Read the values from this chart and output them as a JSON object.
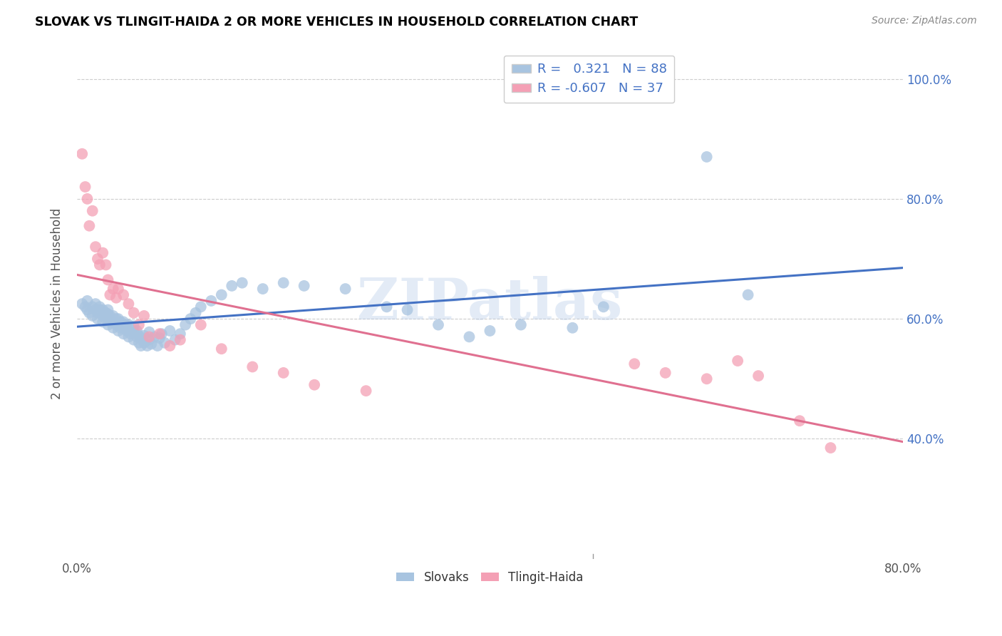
{
  "title": "SLOVAK VS TLINGIT-HAIDA 2 OR MORE VEHICLES IN HOUSEHOLD CORRELATION CHART",
  "source": "Source: ZipAtlas.com",
  "ylabel": "2 or more Vehicles in Household",
  "x_min": 0.0,
  "x_max": 0.8,
  "y_min": 0.2,
  "y_max": 1.05,
  "y_ticks": [
    0.4,
    0.6,
    0.8,
    1.0
  ],
  "y_tick_labels": [
    "40.0%",
    "60.0%",
    "80.0%",
    "100.0%"
  ],
  "slovak_color": "#a8c4e0",
  "tlingit_color": "#f4a0b5",
  "slovak_line_color": "#4472c4",
  "tlingit_line_color": "#e07090",
  "legend_slovak_label": "R =   0.321   N = 88",
  "legend_tlingit_label": "R = -0.607   N = 37",
  "legend_bottom_slovak": "Slovaks",
  "legend_bottom_tlingit": "Tlingit-Haida",
  "watermark": "ZIPatlas",
  "slovak_scatter_x": [
    0.005,
    0.008,
    0.01,
    0.01,
    0.012,
    0.015,
    0.015,
    0.018,
    0.018,
    0.02,
    0.02,
    0.022,
    0.022,
    0.025,
    0.025,
    0.025,
    0.028,
    0.028,
    0.03,
    0.03,
    0.03,
    0.03,
    0.032,
    0.032,
    0.035,
    0.035,
    0.035,
    0.038,
    0.038,
    0.04,
    0.04,
    0.04,
    0.042,
    0.042,
    0.045,
    0.045,
    0.045,
    0.048,
    0.048,
    0.05,
    0.05,
    0.05,
    0.052,
    0.055,
    0.055,
    0.055,
    0.058,
    0.058,
    0.06,
    0.06,
    0.062,
    0.062,
    0.065,
    0.065,
    0.068,
    0.07,
    0.07,
    0.072,
    0.075,
    0.078,
    0.08,
    0.082,
    0.085,
    0.09,
    0.095,
    0.1,
    0.105,
    0.11,
    0.115,
    0.12,
    0.13,
    0.14,
    0.15,
    0.16,
    0.18,
    0.2,
    0.22,
    0.26,
    0.3,
    0.32,
    0.35,
    0.38,
    0.4,
    0.43,
    0.48,
    0.51,
    0.61,
    0.65
  ],
  "slovak_scatter_y": [
    0.625,
    0.62,
    0.615,
    0.63,
    0.61,
    0.605,
    0.62,
    0.615,
    0.625,
    0.6,
    0.61,
    0.615,
    0.62,
    0.595,
    0.605,
    0.615,
    0.6,
    0.61,
    0.59,
    0.6,
    0.608,
    0.615,
    0.595,
    0.605,
    0.585,
    0.595,
    0.605,
    0.59,
    0.6,
    0.58,
    0.59,
    0.6,
    0.585,
    0.595,
    0.575,
    0.585,
    0.595,
    0.58,
    0.59,
    0.57,
    0.58,
    0.59,
    0.575,
    0.565,
    0.578,
    0.588,
    0.57,
    0.58,
    0.56,
    0.572,
    0.555,
    0.568,
    0.56,
    0.572,
    0.555,
    0.565,
    0.578,
    0.558,
    0.57,
    0.555,
    0.568,
    0.575,
    0.56,
    0.58,
    0.565,
    0.575,
    0.59,
    0.6,
    0.61,
    0.62,
    0.63,
    0.64,
    0.655,
    0.66,
    0.65,
    0.66,
    0.655,
    0.65,
    0.62,
    0.615,
    0.59,
    0.57,
    0.58,
    0.59,
    0.585,
    0.62,
    0.87,
    0.64
  ],
  "tlingit_scatter_x": [
    0.005,
    0.008,
    0.01,
    0.012,
    0.015,
    0.018,
    0.02,
    0.022,
    0.025,
    0.028,
    0.03,
    0.032,
    0.035,
    0.038,
    0.04,
    0.045,
    0.05,
    0.055,
    0.06,
    0.065,
    0.07,
    0.08,
    0.09,
    0.1,
    0.12,
    0.14,
    0.17,
    0.2,
    0.23,
    0.28,
    0.54,
    0.57,
    0.61,
    0.64,
    0.66,
    0.7,
    0.73
  ],
  "tlingit_scatter_y": [
    0.875,
    0.82,
    0.8,
    0.755,
    0.78,
    0.72,
    0.7,
    0.69,
    0.71,
    0.69,
    0.665,
    0.64,
    0.65,
    0.635,
    0.65,
    0.64,
    0.625,
    0.61,
    0.59,
    0.605,
    0.57,
    0.575,
    0.555,
    0.565,
    0.59,
    0.55,
    0.52,
    0.51,
    0.49,
    0.48,
    0.525,
    0.51,
    0.5,
    0.53,
    0.505,
    0.43,
    0.385
  ]
}
